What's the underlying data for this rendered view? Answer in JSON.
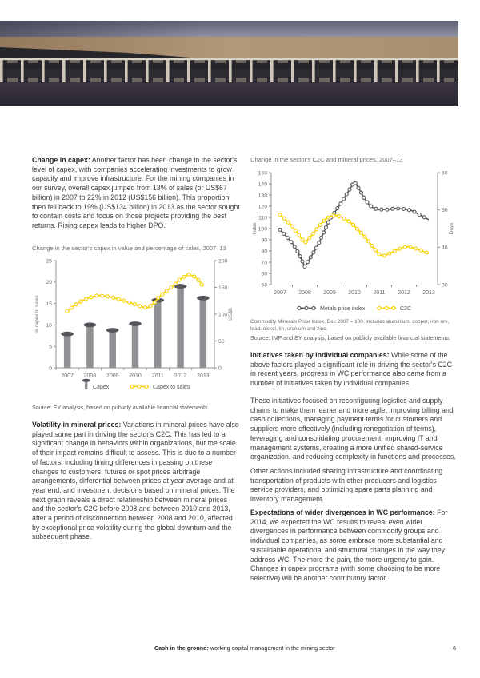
{
  "left_column": {
    "para1": {
      "lead": "Change in capex:",
      "text": " Another factor has been change in the sector's level of capex, with companies accelerating investments to grow capacity and improve infrastructure. For the mining companies in our survey, overall capex jumped from 13% of sales (or US$67 billion) in 2007 to 22% in 2012 (US$156 billion). This proportion then fell back to 19% (US$134 billion) in 2013 as the sector sought to contain costs and focus on those projects providing the best returns. Rising capex leads to higher DPO."
    },
    "chart_title": "Change in the sector's capex in value and percentage of sales, 2007–13",
    "source": "Source: EY analysis, based on publicly available financial statements.",
    "para2": {
      "lead": "Volatility in mineral prices:",
      "text": " Variations in mineral prices have also played some part in driving the sector's C2C. This has led to a significant change in behaviors within organizations, but the scale of their impact remains difficult to assess. This is due to a number of factors, including timing differences in passing on these changes to customers, futures or spot prices arbitrage arrangements, differential between prices at year average and at year end, and investment decisions based on mineral prices. The next graph reveals a direct relationship between mineral prices and the sector's C2C before 2008 and between 2010 and 2013, after a period of disconnection between 2008 and 2010, affected by exceptional price volatility during the global downturn and the subsequent phase."
    }
  },
  "right_column": {
    "chart_title": "Change in the sector's C2C and mineral prices, 2007–13",
    "footnote": "Commodity Minerals Price Index, Dec 2007 = 100, includes aluminium, copper, iron ore, lead, nickel, tin, uranium and zinc.",
    "source": "Source: IMF and EY analysis, based on publicly available financial statements.",
    "para1": {
      "lead": "Initiatives taken by individual companies:",
      "text": " While some of the above factors played a significant role in driving the sector's C2C in recent years, progress in WC performance also came from a number of initiatives taken by individual companies."
    },
    "para2": {
      "text": "These initiatives focused on reconfiguring logistics and supply chains to make them leaner and more agile, improving billing and cash collections, managing payment terms for customers and suppliers more effectively (including renegotiation of terms), leveraging and consolidating procurement, improving IT and management systems, creating a more unified shared-service organization, and reducing complexity in functions and processes."
    },
    "para3": {
      "text": "Other actions included sharing infrastructure and coordinating transportation of products with other producers and logistics service providers, and optimizing spare parts planning and inventory management."
    },
    "para4": {
      "lead": "Expectations of wider divergences in WC performance:",
      "text": " For 2014, we expected the WC results to reveal even wider divergences in performance between commodity groups and individual companies, as some embrace more substantial and sustainable operational and structural changes in the way they address WC. The more the pain, the more urgency to gain. Changes in capex programs (with some choosing to be more selective) will be another contributory factor."
    }
  },
  "footer": {
    "title_bold": "Cash in the ground:",
    "title_rest": " working capital management in the mining sector",
    "page_number": "6"
  },
  "chart_data": [
    {
      "type": "bar",
      "title": "Change in the sector's capex in value and percentage of sales, 2007–13",
      "categories": [
        2007,
        2008,
        2009,
        2010,
        2011,
        2012,
        2013
      ],
      "bar_series": {
        "name": "Capex",
        "axis": "right",
        "values": [
          67,
          84,
          74,
          86,
          130,
          156,
          134
        ]
      },
      "line_series": {
        "name": "Capex to sales",
        "axis": "left",
        "points": [
          [
            2007,
            13.2
          ],
          [
            2007.33,
            14.6
          ],
          [
            2007.66,
            15.7
          ],
          [
            2008,
            16.4
          ],
          [
            2008.35,
            16.9
          ],
          [
            2008.7,
            16.7
          ],
          [
            2009,
            16.4
          ],
          [
            2009.35,
            15.9
          ],
          [
            2009.7,
            15.3
          ],
          [
            2010,
            14.8
          ],
          [
            2010.3,
            14.2
          ],
          [
            2010.55,
            14.0
          ],
          [
            2010.8,
            14.9
          ],
          [
            2011,
            16.2
          ],
          [
            2011.3,
            17.6
          ],
          [
            2011.65,
            19.0
          ],
          [
            2012,
            20.7
          ],
          [
            2012.35,
            21.8
          ],
          [
            2012.65,
            21.2
          ],
          [
            2012.85,
            20.2
          ],
          [
            2013,
            19.0
          ]
        ]
      },
      "left_axis": {
        "label": "% capex to sales",
        "min": 0,
        "max": 25,
        "ticks": [
          0,
          5,
          10,
          15,
          20,
          25
        ]
      },
      "right_axis": {
        "label": "US$b",
        "min": 0,
        "max": 200,
        "ticks": [
          0,
          50,
          100,
          150,
          200
        ]
      },
      "colors": {
        "bar": "#8f9194",
        "bar_cap": "#54565b",
        "line": "#fbd105",
        "axis": "#939598",
        "tick_text": "#6d6e71"
      }
    },
    {
      "type": "line",
      "title": "Change in the sector's C2C and mineral prices, 2007–13",
      "x_ticks": [
        2007,
        2008,
        2009,
        2010,
        2011,
        2012,
        2013
      ],
      "series": [
        {
          "name": "Metals price index",
          "axis": "left",
          "color": "#58595b",
          "points": [
            [
              2007,
              99
            ],
            [
              2007.25,
              93
            ],
            [
              2007.5,
              87
            ],
            [
              2007.75,
              78
            ],
            [
              2008,
              66
            ],
            [
              2008.25,
              75
            ],
            [
              2008.5,
              84
            ],
            [
              2008.75,
              96
            ],
            [
              2009,
              108
            ],
            [
              2009.25,
              116
            ],
            [
              2009.5,
              124
            ],
            [
              2009.75,
              133
            ],
            [
              2010,
              142
            ],
            [
              2010.2,
              135
            ],
            [
              2010.4,
              127
            ],
            [
              2010.6,
              121
            ],
            [
              2010.8,
              118
            ],
            [
              2011,
              117
            ],
            [
              2011.33,
              117
            ],
            [
              2011.66,
              118
            ],
            [
              2012,
              117.5
            ],
            [
              2012.33,
              116
            ],
            [
              2012.66,
              112
            ],
            [
              2013,
              108
            ]
          ]
        },
        {
          "name": "C2C",
          "axis": "right",
          "color": "#fbd105",
          "points": [
            [
              2007,
              48.7
            ],
            [
              2007.25,
              47.2
            ],
            [
              2007.5,
              45.6
            ],
            [
              2007.75,
              43.4
            ],
            [
              2008,
              41.1
            ],
            [
              2008.25,
              43.0
            ],
            [
              2008.5,
              45.0
            ],
            [
              2008.75,
              47.0
            ],
            [
              2009,
              48.2
            ],
            [
              2009.25,
              48.6
            ],
            [
              2009.5,
              48.0
            ],
            [
              2009.75,
              47.1
            ],
            [
              2010,
              45.7
            ],
            [
              2010.25,
              44.0
            ],
            [
              2010.5,
              42.2
            ],
            [
              2010.75,
              40.0
            ],
            [
              2011,
              38.1
            ],
            [
              2011.2,
              37.7
            ],
            [
              2011.5,
              38.6
            ],
            [
              2011.75,
              39.4
            ],
            [
              2012,
              40.0
            ],
            [
              2012.2,
              40.2
            ],
            [
              2012.5,
              39.6
            ],
            [
              2012.75,
              39.0
            ],
            [
              2013,
              38.3
            ]
          ]
        }
      ],
      "left_axis": {
        "label": "Index",
        "min": 50,
        "max": 150,
        "ticks": [
          50,
          60,
          70,
          80,
          90,
          100,
          110,
          120,
          130,
          140,
          150
        ]
      },
      "right_axis": {
        "label": "Days",
        "min": 30,
        "max": 60,
        "ticks": [
          30,
          40,
          50,
          60
        ]
      },
      "colors": {
        "axis": "#939598",
        "tick_text": "#6d6e71"
      }
    }
  ]
}
